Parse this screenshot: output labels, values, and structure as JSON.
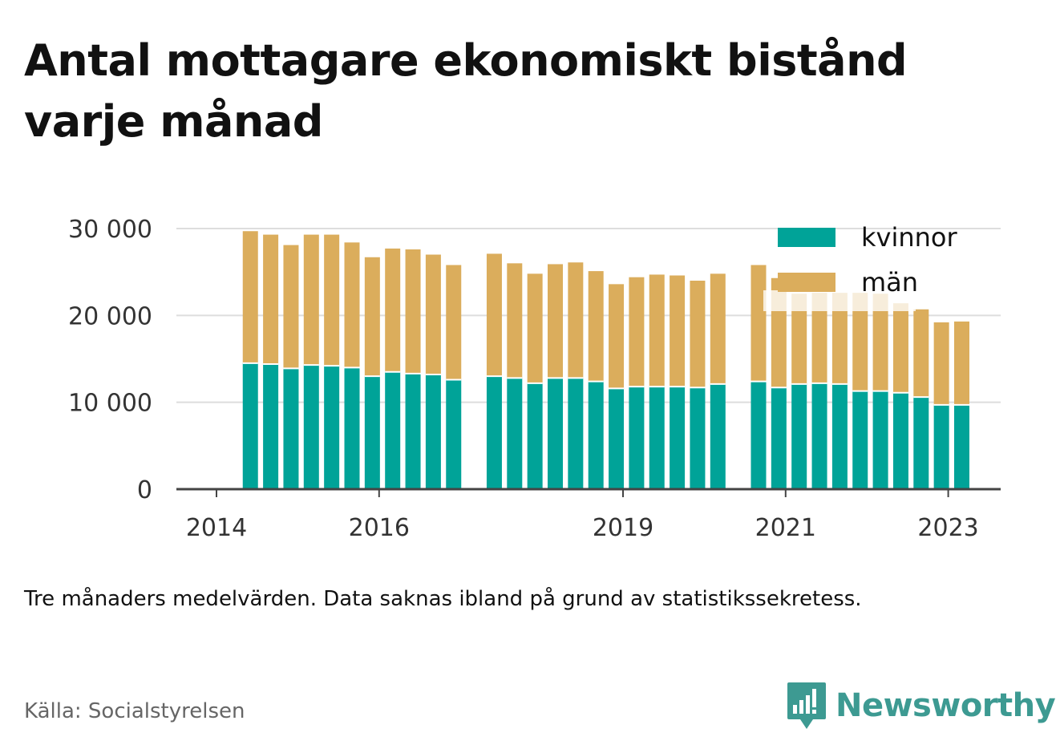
{
  "title": "Antal mottagare ekonomiskt bistånd varje månad",
  "note": "Tre månaders medelvärden. Data saknas ibland på grund av statistikssekretess.",
  "source": "Källa: Socialstyrelsen",
  "brand": "Newsworthy",
  "colors": {
    "kvinnor": "#00a398",
    "man": "#dbad5c",
    "grid": "#dddddd",
    "axis": "#444444",
    "brand": "#3d9a92"
  },
  "chart_data": {
    "type": "bar",
    "stacked": true,
    "title": "Antal mottagare ekonomiskt bistånd varje månad",
    "x_tick_labels": [
      "2014",
      "2016",
      "2019",
      "2021",
      "2023"
    ],
    "y_ticks": [
      0,
      10000,
      20000,
      30000
    ],
    "y_tick_labels": [
      "0",
      "10 000",
      "20 000",
      "30 000"
    ],
    "ylim": [
      0,
      31000
    ],
    "grid": true,
    "legend_position": "top-right",
    "legend": [
      "kvinnor",
      "män"
    ],
    "series_names": [
      "kvinnor",
      "män"
    ],
    "x": [
      "2014-06",
      "2014-09",
      "2014-12",
      "2015-03",
      "2015-06",
      "2015-09",
      "2015-12",
      "2016-03",
      "2016-06",
      "2016-09",
      "2016-12",
      "2017-06",
      "2017-09",
      "2017-12",
      "2018-03",
      "2018-06",
      "2018-09",
      "2018-12",
      "2019-03",
      "2019-06",
      "2019-09",
      "2019-12",
      "2020-03",
      "2020-09",
      "2020-12",
      "2021-03",
      "2021-06",
      "2021-09",
      "2021-12",
      "2022-03",
      "2022-06",
      "2022-09",
      "2022-12",
      "2023-03"
    ],
    "kvinnor": [
      14500,
      14400,
      13900,
      14300,
      14200,
      14000,
      13000,
      13500,
      13300,
      13200,
      12600,
      13000,
      12800,
      12200,
      12800,
      12800,
      12400,
      11600,
      11800,
      11800,
      11800,
      11700,
      12100,
      12400,
      11700,
      12100,
      12200,
      12100,
      11300,
      11300,
      11100,
      10600,
      9700,
      9700
    ],
    "man": [
      15200,
      14900,
      14200,
      15000,
      15100,
      14400,
      13700,
      14200,
      14300,
      13800,
      13200,
      14100,
      13200,
      12600,
      13100,
      13300,
      12700,
      12000,
      12600,
      12900,
      12800,
      12300,
      12700,
      13400,
      12600,
      10400,
      10400,
      10500,
      11300,
      11200,
      10300,
      10100,
      9500,
      9600
    ]
  }
}
